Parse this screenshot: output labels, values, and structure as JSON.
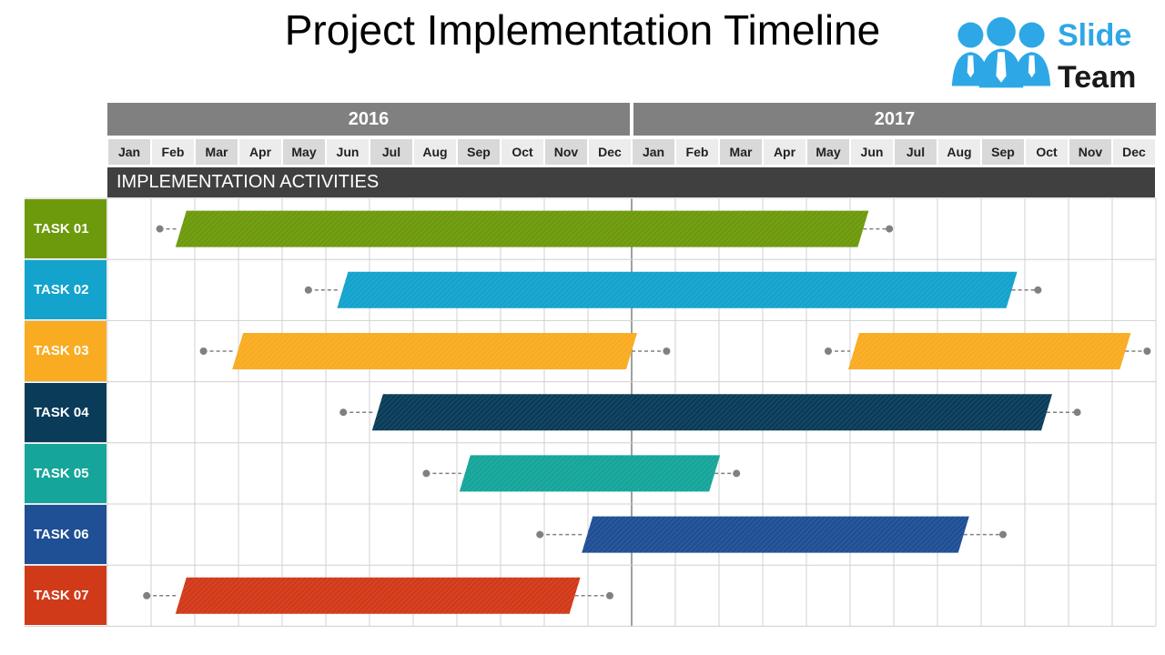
{
  "title": "Project Implementation Timeline",
  "logo": {
    "line1": "Slide",
    "line2": "Team",
    "icon": "people-group-icon",
    "accent": "#2ea7e6"
  },
  "section_header": "IMPLEMENTATION ACTIVITIES",
  "colors": {
    "year_bar": "#808080",
    "month_even": "#d9d9d9",
    "month_odd": "#ececec",
    "section_band": "#404040",
    "grid_line": "#d0d0d0"
  },
  "chart_data": {
    "type": "gantt",
    "title": "Project Implementation Timeline",
    "years": [
      "2016",
      "2017"
    ],
    "months": [
      "Jan",
      "Feb",
      "Mar",
      "Apr",
      "May",
      "Jun",
      "Jul",
      "Aug",
      "Sep",
      "Oct",
      "Nov",
      "Dec",
      "Jan",
      "Feb",
      "Mar",
      "Apr",
      "May",
      "Jun",
      "Jul",
      "Aug",
      "Sep",
      "Oct",
      "Nov",
      "Dec"
    ],
    "tasks": [
      {
        "label": "TASK 01",
        "color": "#6d9a0d",
        "bars": [
          {
            "start": 1.6,
            "end": 17.3,
            "whisker_start": 1.2,
            "whisker_end": 17.9
          }
        ]
      },
      {
        "label": "TASK 02",
        "color": "#13a3cd",
        "bars": [
          {
            "start": 5.3,
            "end": 20.7,
            "whisker_start": 4.6,
            "whisker_end": 21.3
          }
        ]
      },
      {
        "label": "TASK 03",
        "color": "#f9ac22",
        "bars": [
          {
            "start": 2.9,
            "end": 12.0,
            "whisker_start": 2.2,
            "whisker_end": 12.8
          },
          {
            "start": 17.0,
            "end": 23.3,
            "whisker_start": 16.5,
            "whisker_end": 23.8
          }
        ]
      },
      {
        "label": "TASK 04",
        "color": "#0a3c59",
        "bars": [
          {
            "start": 6.1,
            "end": 21.5,
            "whisker_start": 5.4,
            "whisker_end": 22.2
          }
        ]
      },
      {
        "label": "TASK 05",
        "color": "#16a59a",
        "bars": [
          {
            "start": 8.1,
            "end": 13.9,
            "whisker_start": 7.3,
            "whisker_end": 14.4
          }
        ]
      },
      {
        "label": "TASK 06",
        "color": "#1f4f94",
        "bars": [
          {
            "start": 10.9,
            "end": 19.6,
            "whisker_start": 9.9,
            "whisker_end": 20.5
          }
        ]
      },
      {
        "label": "TASK 07",
        "color": "#d13a19",
        "bars": [
          {
            "start": 1.6,
            "end": 10.7,
            "whisker_start": 0.9,
            "whisker_end": 11.5
          }
        ]
      }
    ]
  }
}
